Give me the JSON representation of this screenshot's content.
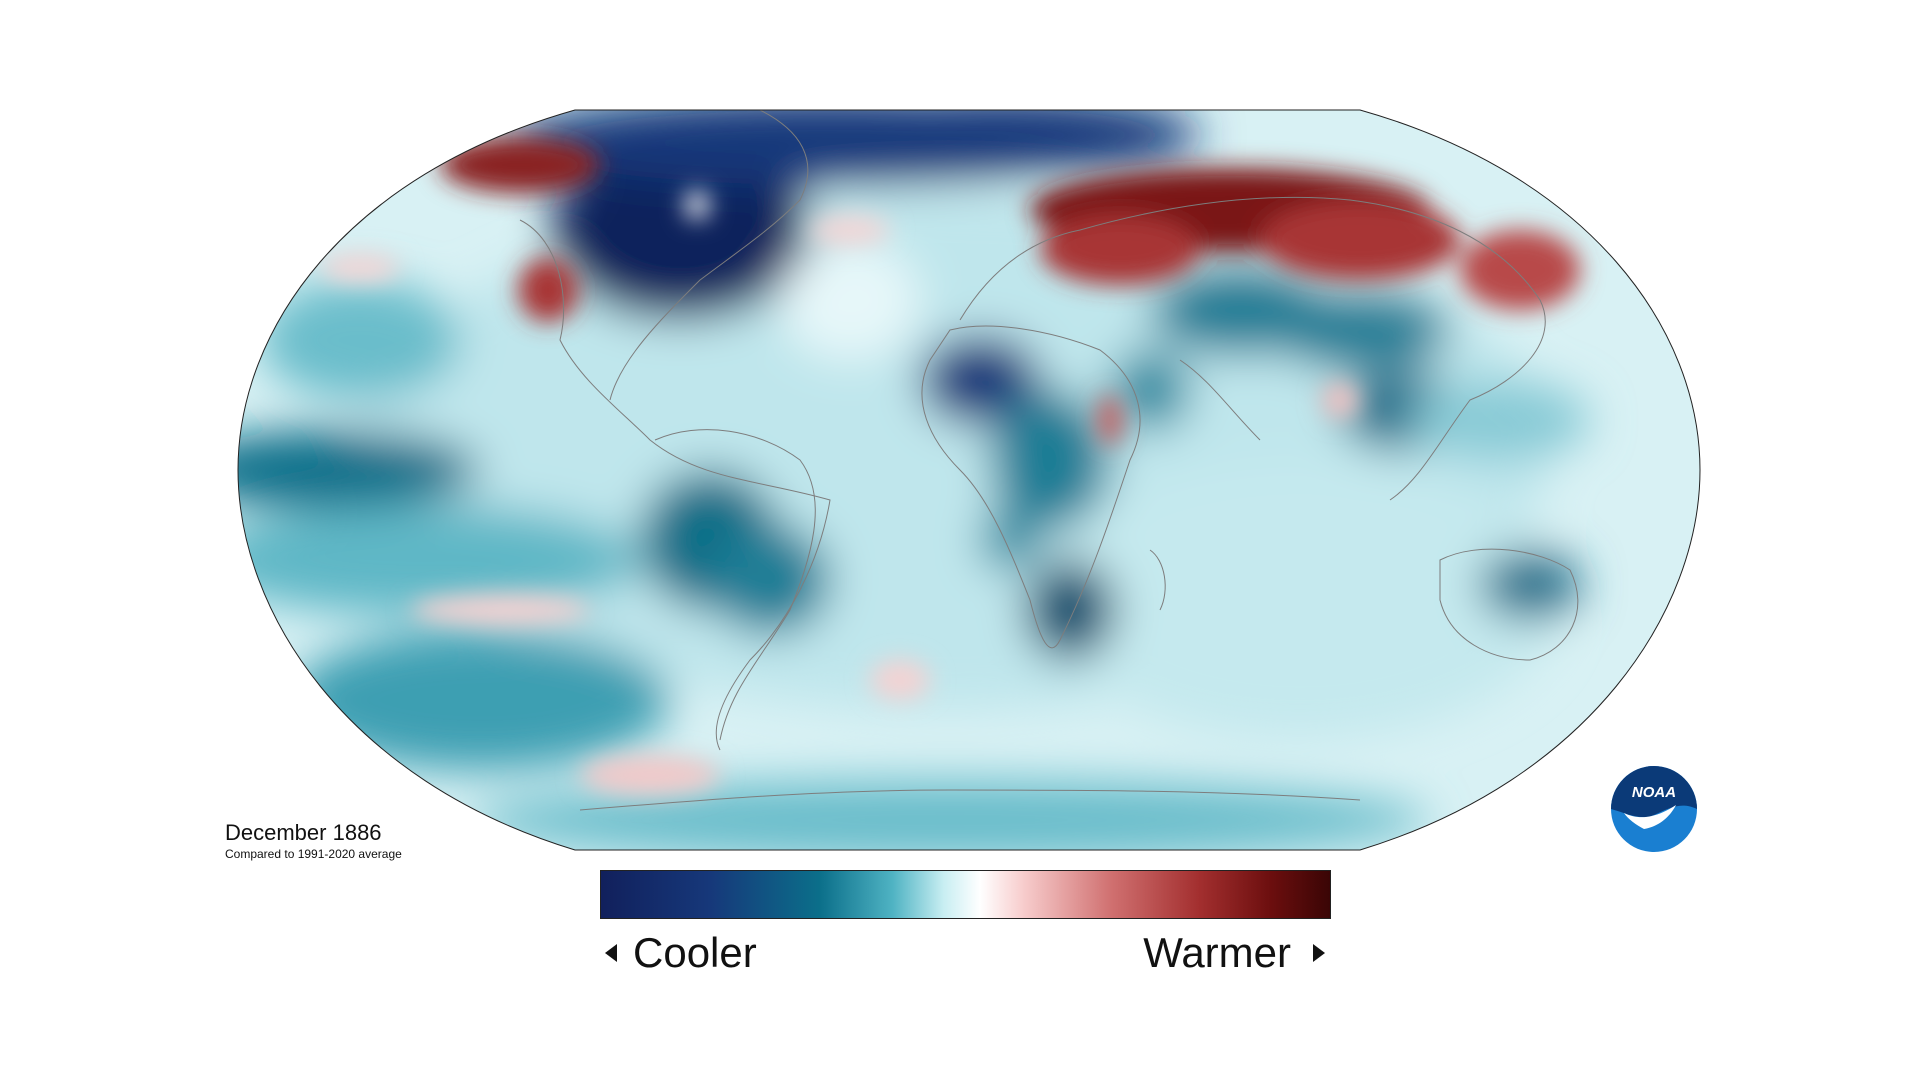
{
  "map": {
    "title": "December 1886",
    "subtitle": "Compared to 1991-2020 average",
    "projection": "Robinson",
    "variable": "temperature anomaly"
  },
  "legend": {
    "cool_label": "Cooler",
    "warm_label": "Warmer",
    "colors": [
      "#11205c",
      "#16387a",
      "#0b6f8a",
      "#1b8fa0",
      "#7ccbd6",
      "#d6f3f6",
      "#ffffff",
      "#f7cccc",
      "#d98080",
      "#a83434",
      "#6b0e0e",
      "#3a0505"
    ]
  },
  "logo": {
    "text": "NOAA",
    "icon": "noaa-logo-icon",
    "colors": {
      "top": "#0b3a78",
      "bottom": "#1a7fd1",
      "bird": "#ffffff"
    }
  }
}
